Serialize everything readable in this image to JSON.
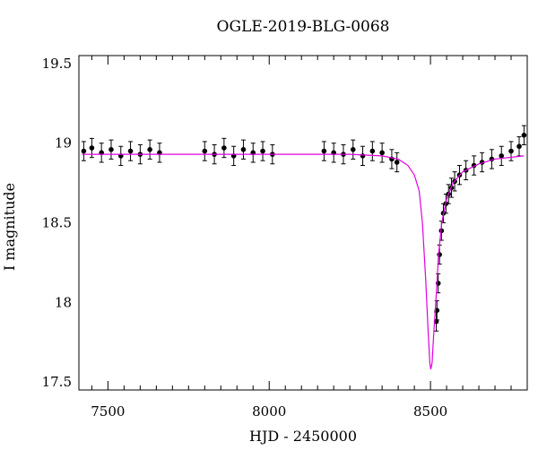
{
  "chart_data": {
    "type": "scatter",
    "title": "OGLE-2019-BLG-0068",
    "xlabel": "HJD - 2450000",
    "ylabel": "I magnitude",
    "xlim": [
      7410,
      8800
    ],
    "ylim": [
      19.55,
      17.45
    ],
    "y_inverted": true,
    "x_ticks": [
      7500,
      8000,
      8500
    ],
    "y_ticks": [
      17.5,
      18,
      18.5,
      19,
      19.5
    ],
    "y_tick_labels": [
      "17.5",
      "18",
      "18.5",
      "19",
      "19.5"
    ],
    "baseline_mag": 18.93,
    "series": [
      {
        "kind": "points_with_errorbars",
        "color": "#000000",
        "x": [
          7425,
          7450,
          7480,
          7510,
          7540,
          7570,
          7600,
          7630,
          7660,
          7800,
          7830,
          7860,
          7890,
          7920,
          7950,
          7980,
          8010,
          8170,
          8200,
          8230,
          8260,
          8290,
          8320,
          8350,
          8380,
          8396,
          8518,
          8520,
          8524,
          8528,
          8534,
          8540,
          8548,
          8556,
          8565,
          8575,
          8590,
          8610,
          8635,
          8660,
          8690,
          8720,
          8750,
          8775,
          8790
        ],
        "y": [
          18.95,
          18.97,
          18.94,
          18.96,
          18.92,
          18.95,
          18.93,
          18.96,
          18.94,
          18.95,
          18.93,
          18.97,
          18.92,
          18.96,
          18.94,
          18.95,
          18.93,
          18.95,
          18.94,
          18.93,
          18.96,
          18.92,
          18.95,
          18.94,
          18.9,
          18.88,
          17.88,
          17.95,
          18.12,
          18.3,
          18.45,
          18.56,
          18.62,
          18.68,
          18.72,
          18.76,
          18.8,
          18.83,
          18.86,
          18.88,
          18.9,
          18.92,
          18.95,
          18.98,
          19.05
        ],
        "yerr": 0.06
      },
      {
        "kind": "model_line",
        "color": "#e000e0",
        "x": [
          7420,
          7800,
          8100,
          8250,
          8350,
          8400,
          8430,
          8450,
          8465,
          8475,
          8485,
          8492,
          8498,
          8501,
          8505,
          8510,
          8518,
          8525,
          8535,
          8550,
          8570,
          8600,
          8650,
          8700,
          8790
        ],
        "y": [
          18.93,
          18.93,
          18.93,
          18.93,
          18.92,
          18.9,
          18.86,
          18.8,
          18.7,
          18.5,
          18.15,
          17.85,
          17.62,
          17.58,
          17.62,
          17.8,
          18.05,
          18.3,
          18.5,
          18.65,
          18.75,
          18.82,
          18.87,
          18.9,
          18.92
        ]
      }
    ]
  }
}
